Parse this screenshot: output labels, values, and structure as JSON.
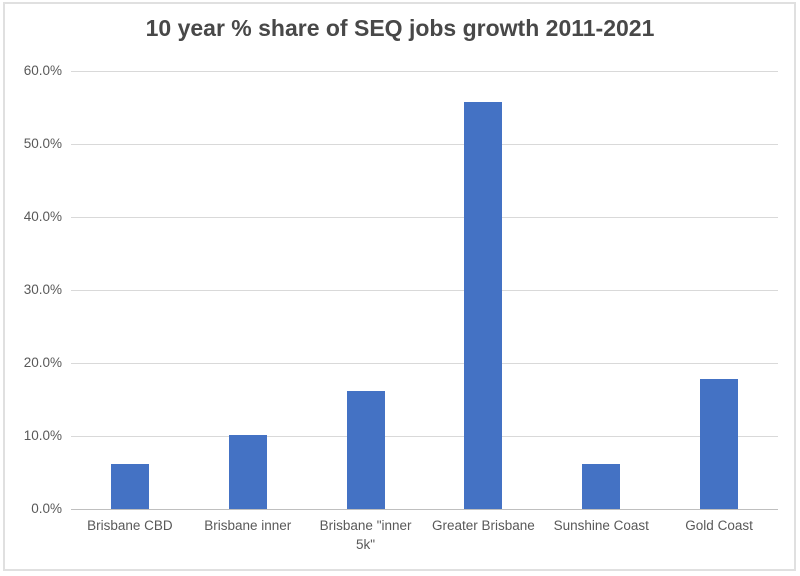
{
  "chart_data": {
    "type": "bar",
    "title": "10 year % share of SEQ jobs growth 2011-2021",
    "categories": [
      "Brisbane CBD",
      "Brisbane inner",
      "Brisbane \"inner 5k\"",
      "Greater Brisbane",
      "Sunshine Coast",
      "Gold Coast"
    ],
    "values": [
      6.2,
      10.2,
      16.1,
      55.8,
      6.2,
      17.8
    ],
    "unit": "%",
    "xlabel": "",
    "ylabel": "",
    "ylim": [
      0,
      60
    ],
    "y_tick_step": 10,
    "y_tick_labels": [
      "0.0%",
      "10.0%",
      "20.0%",
      "30.0%",
      "40.0%",
      "50.0%",
      "60.0%"
    ],
    "grid": true,
    "legend": false,
    "bar_color": "#4472C4",
    "gridline_color": "#D9D9D9",
    "axis_line_color": "#BFBFBF",
    "text_color": "#595959",
    "title_color": "#484848",
    "border_color": "#E0E0E0",
    "background": "#FFFFFF"
  }
}
